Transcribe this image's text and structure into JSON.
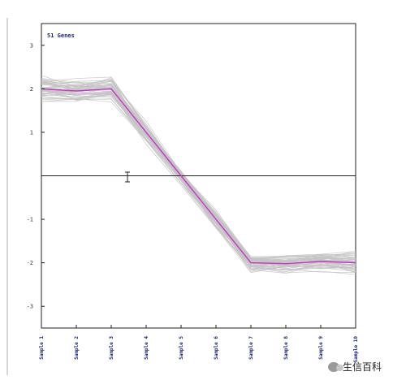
{
  "chart_data": {
    "type": "line",
    "title": "51 Genes",
    "categories": [
      "Sample 1",
      "Sample 2",
      "Sample 3",
      "Sample 4",
      "Sample 5",
      "Sample 6",
      "Sample 7",
      "Sample 8",
      "Sample 9",
      "Sample 10"
    ],
    "yticks": [
      3,
      2,
      1,
      -1,
      -2,
      -3
    ],
    "ylim": [
      -3.5,
      3.5
    ],
    "zero_line": 0,
    "series": [
      {
        "values": [
          2.0,
          1.95,
          2.0,
          1.0,
          0.0,
          -1.0,
          -2.0,
          -2.02,
          -1.97,
          -2.0
        ]
      }
    ],
    "profile_band": {
      "count": 51,
      "spread": [
        0.3,
        0.28,
        0.3,
        0.25,
        0.2,
        0.22,
        0.22,
        0.22,
        0.24,
        0.25
      ]
    },
    "colors": {
      "mean_line": "#cc33cc",
      "profiles": "#c4c4c4",
      "axis": "#222222"
    }
  },
  "watermark": {
    "text": "生信百科",
    "icon": "wechat-icon"
  }
}
